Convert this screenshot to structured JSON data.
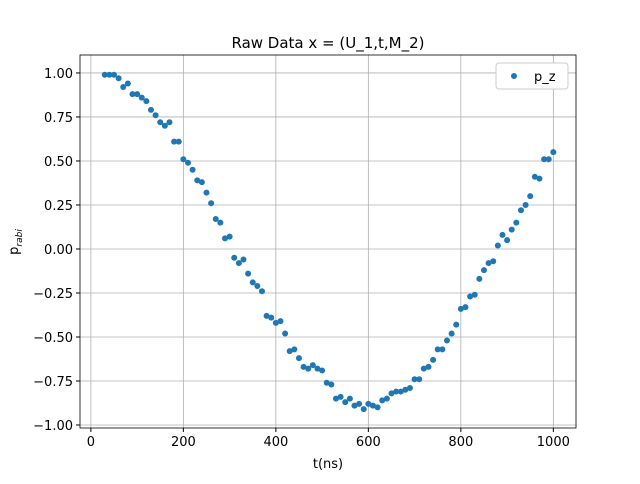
{
  "chart_data": {
    "type": "scatter",
    "title": "Raw Data x = (U_1,t,M_2)",
    "xlabel": "t(ns)",
    "ylabel": "p",
    "ylabel_sub": "rabi",
    "x": [
      30,
      40,
      50,
      60,
      70,
      80,
      90,
      100,
      110,
      120,
      130,
      140,
      150,
      160,
      170,
      180,
      190,
      200,
      210,
      220,
      230,
      240,
      250,
      260,
      270,
      280,
      290,
      300,
      310,
      320,
      330,
      340,
      350,
      360,
      370,
      380,
      390,
      400,
      410,
      420,
      430,
      440,
      450,
      460,
      470,
      480,
      490,
      500,
      510,
      520,
      530,
      540,
      550,
      560,
      570,
      580,
      590,
      600,
      610,
      620,
      630,
      640,
      650,
      660,
      670,
      680,
      690,
      700,
      710,
      720,
      730,
      740,
      750,
      760,
      770,
      780,
      790,
      800,
      810,
      820,
      830,
      840,
      850,
      860,
      870,
      880,
      890,
      900,
      910,
      920,
      930,
      940,
      950,
      960,
      970,
      980,
      990,
      1000
    ],
    "series": [
      {
        "name": "p_z",
        "color": "#1f77b4",
        "values": [
          0.99,
          0.99,
          0.99,
          0.97,
          0.92,
          0.94,
          0.88,
          0.88,
          0.86,
          0.84,
          0.79,
          0.76,
          0.72,
          0.7,
          0.72,
          0.61,
          0.61,
          0.51,
          0.49,
          0.45,
          0.39,
          0.38,
          0.32,
          0.26,
          0.17,
          0.15,
          0.06,
          0.07,
          -0.05,
          -0.08,
          -0.06,
          -0.14,
          -0.19,
          -0.21,
          -0.24,
          -0.38,
          -0.39,
          -0.42,
          -0.41,
          -0.48,
          -0.58,
          -0.57,
          -0.62,
          -0.67,
          -0.68,
          -0.66,
          -0.68,
          -0.69,
          -0.76,
          -0.77,
          -0.85,
          -0.84,
          -0.87,
          -0.85,
          -0.89,
          -0.88,
          -0.91,
          -0.88,
          -0.89,
          -0.9,
          -0.86,
          -0.85,
          -0.82,
          -0.81,
          -0.81,
          -0.8,
          -0.79,
          -0.74,
          -0.74,
          -0.68,
          -0.67,
          -0.63,
          -0.57,
          -0.57,
          -0.52,
          -0.48,
          -0.43,
          -0.34,
          -0.33,
          -0.27,
          -0.26,
          -0.17,
          -0.12,
          -0.08,
          -0.07,
          0.02,
          0.08,
          0.05,
          0.11,
          0.15,
          0.22,
          0.25,
          0.3,
          0.41,
          0.4,
          0.51,
          0.51,
          0.55
        ]
      }
    ],
    "xlim": [
      -23.5,
      1049
    ],
    "ylim": [
      -1.017,
      1.102
    ],
    "xticks": [
      0,
      200,
      400,
      600,
      800,
      1000
    ],
    "yticks": [
      {
        "value": -1,
        "label": "−1.00"
      },
      {
        "value": -0.75,
        "label": "−0.75"
      },
      {
        "value": -0.5,
        "label": "−0.50"
      },
      {
        "value": -0.25,
        "label": "−0.25"
      },
      {
        "value": 0,
        "label": "0.00"
      },
      {
        "value": 0.25,
        "label": "0.25"
      },
      {
        "value": 0.5,
        "label": "0.50"
      },
      {
        "value": 0.75,
        "label": "0.75"
      },
      {
        "value": 1,
        "label": "1.00"
      }
    ],
    "grid": true,
    "legend": "upper right"
  }
}
